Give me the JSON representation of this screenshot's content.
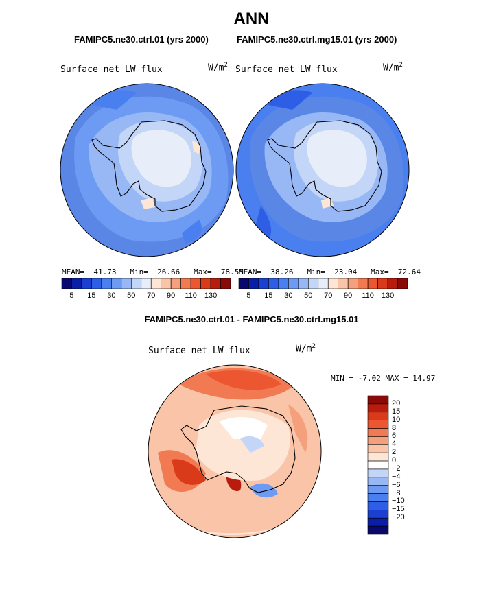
{
  "title": "ANN",
  "panels": [
    {
      "case": "FAMIPC5.ne30.ctrl.01 (yrs 2000)",
      "variable": "Surface net LW flux",
      "units": "W/m",
      "units_sup": "2",
      "stats": {
        "mean_label": "MEAN=",
        "mean": "41.73",
        "min_label": "Min=",
        "min": "26.66",
        "max_label": "Max=",
        "max": "78.55"
      }
    },
    {
      "case": "FAMIPC5.ne30.ctrl.mg15.01 (yrs 2000)",
      "variable": "Surface net LW flux",
      "units": "W/m",
      "units_sup": "2",
      "stats": {
        "mean_label": "MEAN=",
        "mean": "38.26",
        "min_label": "Min=",
        "min": "23.04",
        "max_label": "Max=",
        "max": "72.64"
      }
    }
  ],
  "abs_colorbar": {
    "colors": [
      "#08086e",
      "#0b1fa6",
      "#1b3fd0",
      "#2f5ee6",
      "#4a7ff0",
      "#6d9af2",
      "#97b8f5",
      "#c3d6f7",
      "#e7eef9",
      "#fde6d6",
      "#f9c4a8",
      "#f5a07c",
      "#f27a52",
      "#ec5630",
      "#d93a1a",
      "#b81c0e",
      "#8a0a08"
    ],
    "tick_labels": [
      "5",
      "15",
      "30",
      "50",
      "70",
      "90",
      "110",
      "130"
    ]
  },
  "diff": {
    "title": "FAMIPC5.ne30.ctrl.01 - FAMIPC5.ne30.ctrl.mg15.01",
    "variable": "Surface net LW flux",
    "units": "W/m",
    "units_sup": "2",
    "minmax": "MIN =   -7.02 MAX =   14.97"
  },
  "diff_colorbar": {
    "colors": [
      "#8a0a08",
      "#b81c0e",
      "#d93a1a",
      "#ec5630",
      "#f27a52",
      "#f5a07c",
      "#f9c4a8",
      "#fde6d6",
      "#ffffff",
      "#c3d6f7",
      "#97b8f5",
      "#6d9af2",
      "#4a7ff0",
      "#2f5ee6",
      "#1b3fd0",
      "#0b1fa6",
      "#08086e"
    ],
    "tick_labels": [
      "20",
      "15",
      "10",
      "8",
      "6",
      "4",
      "2",
      "0",
      "−2",
      "−4",
      "−6",
      "−8",
      "−10",
      "−15",
      "−20"
    ]
  }
}
